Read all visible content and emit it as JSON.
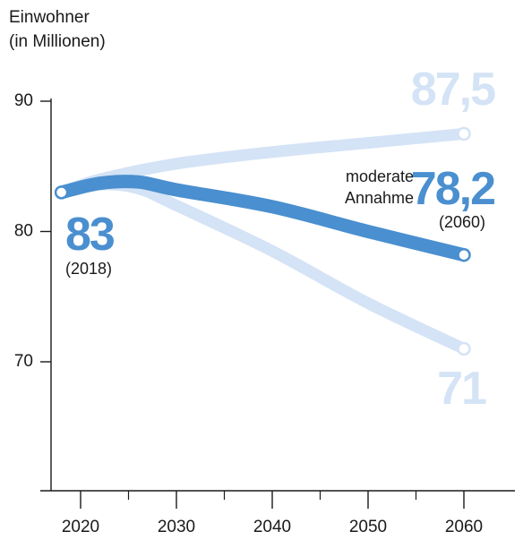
{
  "chart_data": {
    "type": "line",
    "ylabel": [
      "Einwohner",
      "(in Millionen)"
    ],
    "xlabel": "",
    "xlim": [
      2016,
      2064
    ],
    "ylim": [
      60,
      90
    ],
    "yticks": [
      70,
      80,
      90
    ],
    "xticks": [
      2020,
      2030,
      2040,
      2050,
      2060
    ],
    "minor_xticks": [
      2025,
      2035,
      2045,
      2055
    ],
    "grid": false,
    "colors": {
      "moderate": "#4a8fcf",
      "scenario": "#d4e3f5"
    },
    "series": [
      {
        "id": "high",
        "x": [
          2018,
          2022,
          2030,
          2040,
          2050,
          2060
        ],
        "y": [
          83,
          84,
          85.2,
          86.1,
          86.8,
          87.5
        ]
      },
      {
        "id": "low",
        "x": [
          2018,
          2022,
          2026,
          2030,
          2040,
          2050,
          2060
        ],
        "y": [
          83,
          83.6,
          83.3,
          82,
          78.5,
          74.5,
          71
        ]
      },
      {
        "name": "moderate Annahme",
        "id": "moderate",
        "x": [
          2018,
          2022,
          2026,
          2030,
          2040,
          2050,
          2060
        ],
        "y": [
          83,
          83.7,
          83.8,
          83.2,
          81.9,
          80,
          78.2
        ]
      }
    ],
    "annotations": {
      "start_value": "83",
      "start_year": "(2018)",
      "high_value": "87,5",
      "low_value": "71",
      "moderate_label_1": "moderate",
      "moderate_label_2": "Annahme",
      "moderate_value": "78,2",
      "moderate_year": "(2060)"
    }
  }
}
